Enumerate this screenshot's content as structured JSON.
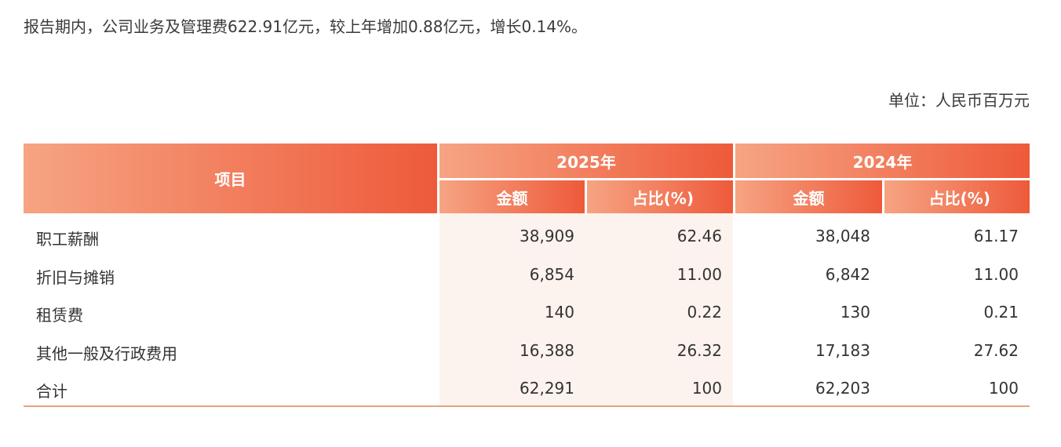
{
  "intro": "报告期内，公司业务及管理费622.91亿元，较上年增加0.88亿元，增长0.14%。",
  "unit": "单位：人民币百万元",
  "header": {
    "item": "项目",
    "year1": "2025年",
    "year2": "2024年",
    "amount": "金额",
    "pct": "占比(%)"
  },
  "rows": [
    {
      "item": "职工薪酬",
      "a1": "38,909",
      "p1": "62.46",
      "a2": "38,048",
      "p2": "61.17"
    },
    {
      "item": "折旧与摊销",
      "a1": "6,854",
      "p1": "11.00",
      "a2": "6,842",
      "p2": "11.00"
    },
    {
      "item": "租赁费",
      "a1": "140",
      "p1": "0.22",
      "a2": "130",
      "p2": "0.21"
    },
    {
      "item": "其他一般及行政费用",
      "a1": "16,388",
      "p1": "26.32",
      "a2": "17,183",
      "p2": "27.62"
    },
    {
      "item": "合计",
      "a1": "62,291",
      "p1": "100",
      "a2": "62,203",
      "p2": "100"
    }
  ]
}
